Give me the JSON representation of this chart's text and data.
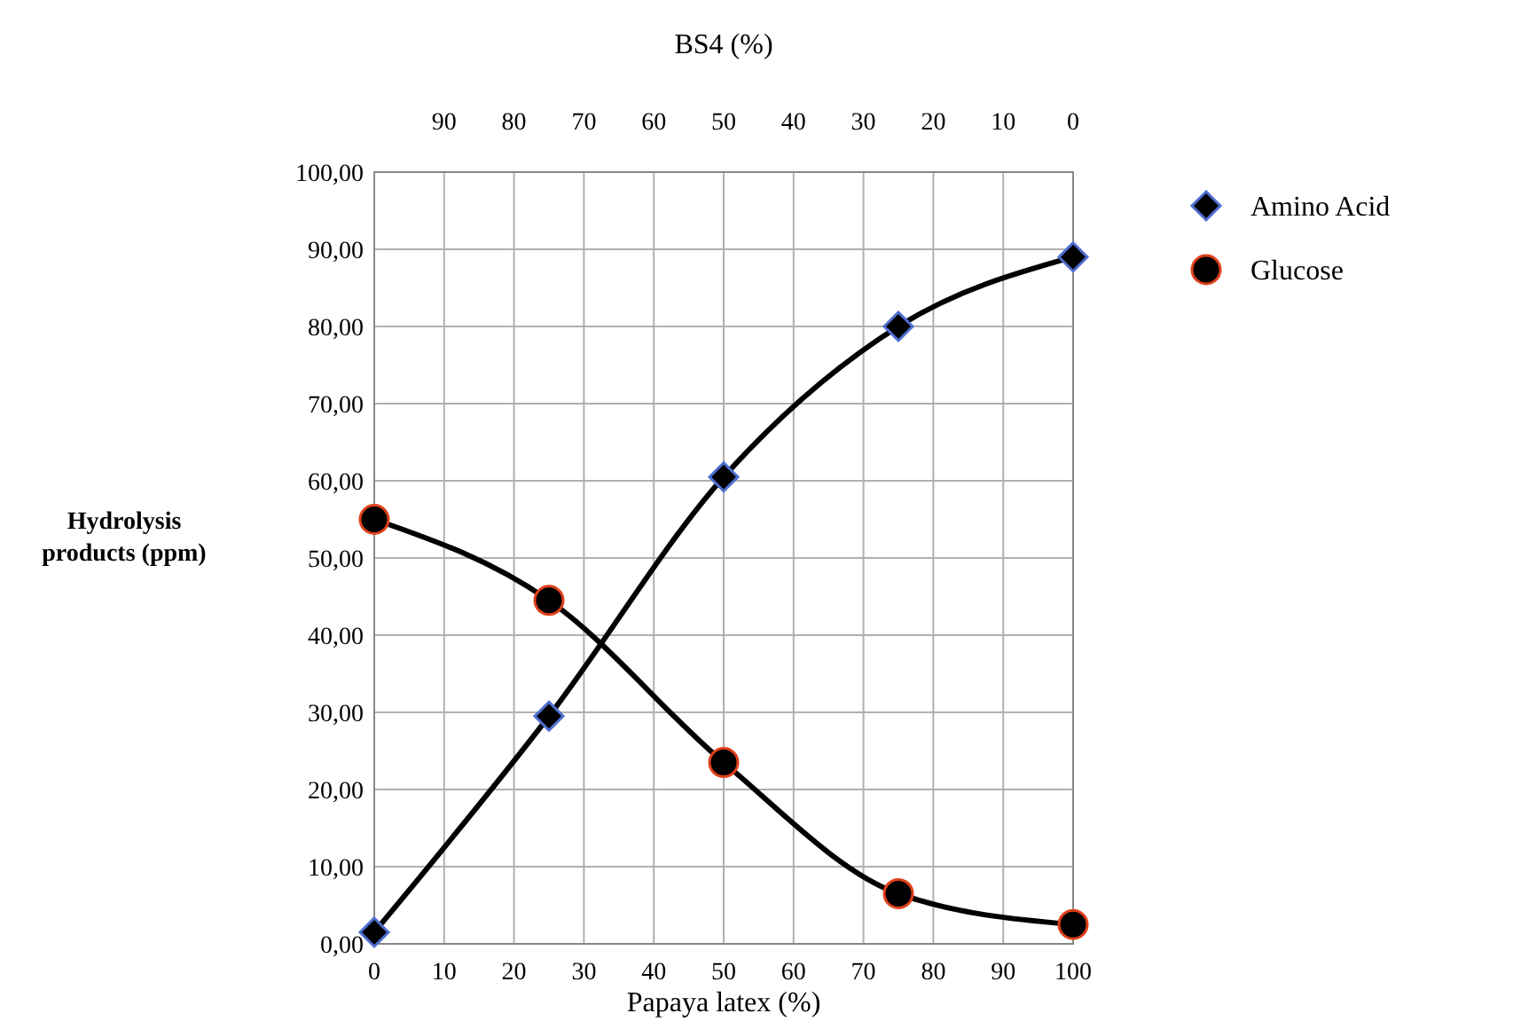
{
  "chart_data": {
    "type": "line",
    "x2label": "BS4 (%)",
    "xlabel": "Papaya latex (%)",
    "ylabel": "Hydrolysis products (ppm)",
    "xlim": [
      0,
      100
    ],
    "xticks": [
      0,
      10,
      20,
      30,
      40,
      50,
      60,
      70,
      80,
      90,
      100
    ],
    "x2lim": [
      100,
      0
    ],
    "x2ticks": [
      90,
      80,
      70,
      60,
      50,
      40,
      30,
      20,
      10,
      0
    ],
    "ylim": [
      0,
      100
    ],
    "yticks": [
      {
        "value": 0,
        "label": "0,00"
      },
      {
        "value": 10,
        "label": "10,00"
      },
      {
        "value": 20,
        "label": "20,00"
      },
      {
        "value": 30,
        "label": "30,00"
      },
      {
        "value": 40,
        "label": "40,00"
      },
      {
        "value": 50,
        "label": "50,00"
      },
      {
        "value": 60,
        "label": "60,00"
      },
      {
        "value": 70,
        "label": "70,00"
      },
      {
        "value": 80,
        "label": "80,00"
      },
      {
        "value": 90,
        "label": "90,00"
      },
      {
        "value": 100,
        "label": "100,00"
      }
    ],
    "x": [
      0,
      25,
      50,
      75,
      100
    ],
    "grid": true,
    "legend": "top right",
    "series": [
      {
        "name": "Amino Acid",
        "color": "#000000",
        "marker": "diamond",
        "values": [
          1.5,
          29.5,
          60.5,
          80,
          89
        ]
      },
      {
        "name": "Glucose",
        "color": "#000000",
        "marker": "circle",
        "values": [
          55,
          44.5,
          23.5,
          6.5,
          2.5
        ]
      }
    ]
  }
}
